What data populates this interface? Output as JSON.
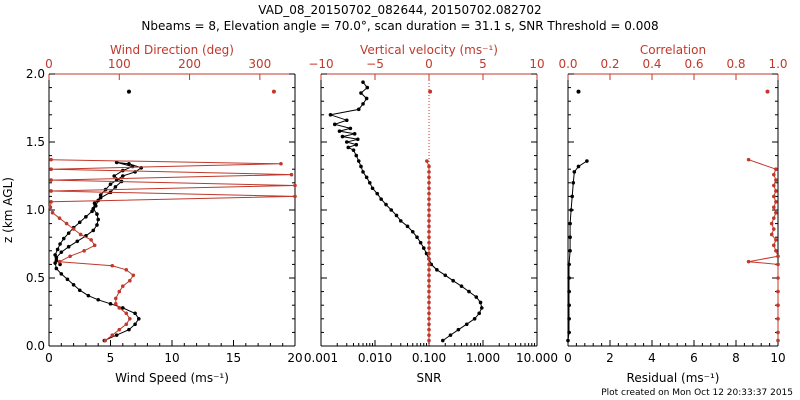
{
  "title_line1": "VAD_08_20150702_082644, 20150702.082702",
  "title_line2": "Nbeams = 8, Elevation angle = 70.0°, scan duration = 31.1 s, SNR Threshold = 0.008",
  "footer": "Plot created on Mon Oct 12 20:33:37 2015",
  "colors": {
    "black": "#000000",
    "red": "#c0392b"
  },
  "chart_data": [
    {
      "type": "line",
      "ylabel": "z (km AGL)",
      "ylim": [
        0,
        2
      ],
      "yticks": [
        "0.0",
        "0.5",
        "1.0",
        "1.5",
        "2.0"
      ],
      "xlabel": "Wind Speed (ms⁻¹)",
      "xlim": [
        0,
        20
      ],
      "xticks": [
        "0",
        "5",
        "10",
        "15",
        "20"
      ],
      "x2label": "Wind Direction (deg)",
      "x2lim": [
        0,
        350
      ],
      "x2ticks": [
        "0",
        "100",
        "200",
        "300"
      ],
      "x2tickvals": [
        0,
        100,
        200,
        300
      ],
      "series": [
        {
          "color": "#000000",
          "axis": "bottom",
          "points": [
            [
              4.5,
              0.04
            ],
            [
              5.5,
              0.08
            ],
            [
              6.5,
              0.12
            ],
            [
              7.0,
              0.16
            ],
            [
              7.3,
              0.2
            ],
            [
              7.0,
              0.24
            ],
            [
              6.0,
              0.28
            ],
            [
              5.0,
              0.31
            ],
            [
              4.0,
              0.34
            ],
            [
              3.2,
              0.37
            ],
            [
              2.5,
              0.41
            ],
            [
              2.0,
              0.45
            ],
            [
              1.5,
              0.49
            ],
            [
              1.0,
              0.53
            ],
            [
              0.6,
              0.57
            ],
            [
              0.5,
              0.61
            ],
            [
              0.6,
              0.65
            ],
            [
              1.0,
              0.69
            ],
            [
              1.6,
              0.73
            ],
            [
              2.3,
              0.77
            ],
            [
              3.0,
              0.81
            ],
            [
              3.6,
              0.85
            ],
            [
              3.9,
              0.89
            ],
            [
              4.0,
              0.93
            ],
            [
              3.9,
              0.97
            ],
            [
              3.6,
              1.01
            ],
            [
              3.7,
              1.05
            ],
            [
              4.2,
              1.09
            ],
            [
              5.0,
              1.13
            ],
            [
              5.4,
              1.17
            ],
            [
              5.9,
              1.21
            ],
            [
              5.3,
              1.25
            ],
            [
              6.0,
              1.29
            ],
            [
              6.8,
              1.32
            ],
            [
              5.5,
              1.35
            ],
            [
              6.5,
              1.34
            ],
            [
              7.5,
              1.31
            ],
            [
              7.0,
              1.28
            ],
            [
              6.0,
              1.25
            ],
            [
              5.5,
              1.22
            ],
            [
              5.0,
              1.19
            ],
            [
              4.6,
              1.15
            ],
            [
              4.2,
              1.11
            ],
            [
              4.0,
              1.07
            ],
            [
              3.8,
              1.03
            ],
            [
              3.5,
              0.99
            ],
            [
              3.0,
              0.95
            ],
            [
              2.5,
              0.91
            ],
            [
              2.0,
              0.87
            ],
            [
              1.6,
              0.83
            ],
            [
              1.2,
              0.79
            ],
            [
              0.9,
              0.75
            ],
            [
              0.7,
              0.71
            ],
            [
              0.5,
              0.67
            ],
            [
              0.6,
              0.63
            ],
            [
              0.9,
              0.6
            ]
          ],
          "isolated": [
            [
              6.5,
              1.87
            ]
          ]
        },
        {
          "color": "#c0392b",
          "axis": "top",
          "points": [
            [
              80,
              0.04
            ],
            [
              90,
              0.08
            ],
            [
              100,
              0.12
            ],
            [
              110,
              0.16
            ],
            [
              115,
              0.2
            ],
            [
              110,
              0.24
            ],
            [
              100,
              0.28
            ],
            [
              95,
              0.31
            ],
            [
              95,
              0.35
            ],
            [
              100,
              0.4
            ],
            [
              105,
              0.44
            ],
            [
              115,
              0.48
            ],
            [
              120,
              0.52
            ],
            [
              110,
              0.56
            ],
            [
              90,
              0.59
            ],
            [
              15,
              0.62
            ],
            [
              30,
              0.66
            ],
            [
              50,
              0.7
            ],
            [
              65,
              0.74
            ],
            [
              60,
              0.78
            ],
            [
              45,
              0.82
            ],
            [
              35,
              0.86
            ],
            [
              25,
              0.9
            ],
            [
              15,
              0.94
            ],
            [
              5,
              0.98
            ],
            [
              2,
              1.02
            ],
            [
              3,
              1.06
            ],
            [
              350,
              1.1
            ],
            [
              3,
              1.14
            ],
            [
              350,
              1.18
            ],
            [
              3,
              1.22
            ],
            [
              345,
              1.26
            ],
            [
              3,
              1.3
            ],
            [
              330,
              1.34
            ],
            [
              3,
              1.37
            ]
          ],
          "isolated": [
            [
              320,
              1.87
            ]
          ]
        }
      ]
    },
    {
      "type": "scatter",
      "ylim": [
        0,
        2
      ],
      "xlabel": "SNR",
      "xscale": "log",
      "xlim": [
        0.001,
        10
      ],
      "xticks": [
        "0.001",
        "0.010",
        "0.100",
        "1.000",
        "10.000"
      ],
      "x2label": "Vertical velocity (ms⁻¹)",
      "x2lim": [
        -10,
        10
      ],
      "x2ticks": [
        "−10",
        "−5",
        "0",
        "5",
        "10"
      ],
      "x2tickvals": [
        -10,
        -5,
        0,
        5,
        10
      ],
      "zero_line": 0,
      "series": [
        {
          "color": "#000000",
          "axis": "bottom",
          "points": [
            [
              0.18,
              0.04
            ],
            [
              0.25,
              0.08
            ],
            [
              0.35,
              0.12
            ],
            [
              0.5,
              0.16
            ],
            [
              0.7,
              0.2
            ],
            [
              0.85,
              0.24
            ],
            [
              0.95,
              0.28
            ],
            [
              0.9,
              0.32
            ],
            [
              0.75,
              0.36
            ],
            [
              0.55,
              0.4
            ],
            [
              0.4,
              0.44
            ],
            [
              0.28,
              0.48
            ],
            [
              0.2,
              0.52
            ],
            [
              0.14,
              0.56
            ],
            [
              0.11,
              0.6
            ],
            [
              0.1,
              0.64
            ],
            [
              0.09,
              0.68
            ],
            [
              0.08,
              0.72
            ],
            [
              0.07,
              0.76
            ],
            [
              0.06,
              0.8
            ],
            [
              0.05,
              0.84
            ],
            [
              0.04,
              0.88
            ],
            [
              0.03,
              0.92
            ],
            [
              0.025,
              0.96
            ],
            [
              0.02,
              1.0
            ],
            [
              0.016,
              1.04
            ],
            [
              0.013,
              1.08
            ],
            [
              0.011,
              1.12
            ],
            [
              0.009,
              1.16
            ],
            [
              0.008,
              1.2
            ],
            [
              0.007,
              1.24
            ],
            [
              0.006,
              1.28
            ],
            [
              0.0055,
              1.32
            ],
            [
              0.005,
              1.36
            ],
            [
              0.0045,
              1.4
            ],
            [
              0.004,
              1.44
            ],
            [
              0.0032,
              1.46
            ],
            [
              0.0045,
              1.48
            ],
            [
              0.003,
              1.5
            ],
            [
              0.0048,
              1.52
            ],
            [
              0.0025,
              1.54
            ],
            [
              0.0042,
              1.56
            ],
            [
              0.0022,
              1.58
            ],
            [
              0.0035,
              1.6
            ],
            [
              0.0018,
              1.63
            ],
            [
              0.003,
              1.66
            ],
            [
              0.0015,
              1.7
            ],
            [
              0.005,
              1.74
            ],
            [
              0.006,
              1.78
            ],
            [
              0.007,
              1.82
            ],
            [
              0.0055,
              1.86
            ],
            [
              0.0072,
              1.9
            ],
            [
              0.006,
              1.94
            ]
          ],
          "isolated": []
        },
        {
          "color": "#c0392b",
          "axis": "top",
          "points": [
            [
              0.0,
              0.04
            ],
            [
              0.0,
              0.08
            ],
            [
              0.0,
              0.12
            ],
            [
              0.0,
              0.16
            ],
            [
              0.0,
              0.2
            ],
            [
              0.0,
              0.24
            ],
            [
              0.0,
              0.28
            ],
            [
              0.0,
              0.32
            ],
            [
              0.0,
              0.36
            ],
            [
              0.0,
              0.4
            ],
            [
              0.0,
              0.44
            ],
            [
              0.0,
              0.48
            ],
            [
              0.0,
              0.52
            ],
            [
              0.0,
              0.56
            ],
            [
              0.0,
              0.6
            ],
            [
              0.0,
              0.64
            ],
            [
              0.0,
              0.68
            ],
            [
              0.0,
              0.72
            ],
            [
              0.0,
              0.76
            ],
            [
              0.0,
              0.8
            ],
            [
              0.0,
              0.84
            ],
            [
              0.0,
              0.88
            ],
            [
              0.0,
              0.92
            ],
            [
              0.0,
              0.96
            ],
            [
              0.0,
              1.0
            ],
            [
              0.0,
              1.04
            ],
            [
              0.0,
              1.08
            ],
            [
              0.0,
              1.12
            ],
            [
              0.0,
              1.16
            ],
            [
              0.0,
              1.2
            ],
            [
              0.0,
              1.24
            ],
            [
              0.0,
              1.28
            ],
            [
              0.0,
              1.32
            ],
            [
              -0.2,
              1.36
            ]
          ],
          "isolated": [
            [
              0.1,
              1.87
            ]
          ]
        }
      ]
    },
    {
      "type": "line",
      "ylim": [
        0,
        2
      ],
      "xlabel": "Residual (ms⁻¹)",
      "xlim": [
        0,
        10
      ],
      "xticks": [
        "0",
        "2",
        "4",
        "6",
        "8",
        "10"
      ],
      "x2label": "Correlation",
      "x2lim": [
        0,
        1
      ],
      "x2ticks": [
        "0.0",
        "0.2",
        "0.4",
        "0.6",
        "0.8",
        "1.0"
      ],
      "x2tickvals": [
        0,
        0.2,
        0.4,
        0.6,
        0.8,
        1.0
      ],
      "series": [
        {
          "color": "#000000",
          "axis": "bottom",
          "points": [
            [
              0.0,
              0.04
            ],
            [
              0.05,
              0.1
            ],
            [
              0.05,
              0.2
            ],
            [
              0.05,
              0.3
            ],
            [
              0.05,
              0.4
            ],
            [
              0.05,
              0.5
            ],
            [
              0.05,
              0.6
            ],
            [
              0.1,
              0.7
            ],
            [
              0.1,
              0.8
            ],
            [
              0.1,
              0.9
            ],
            [
              0.15,
              1.0
            ],
            [
              0.2,
              1.1
            ],
            [
              0.25,
              1.2
            ],
            [
              0.3,
              1.28
            ],
            [
              0.5,
              1.32
            ],
            [
              0.9,
              1.36
            ]
          ],
          "isolated": [
            [
              0.5,
              1.87
            ]
          ]
        },
        {
          "color": "#c0392b",
          "axis": "top",
          "points": [
            [
              1.0,
              0.04
            ],
            [
              1.0,
              0.1
            ],
            [
              1.0,
              0.2
            ],
            [
              1.0,
              0.3
            ],
            [
              1.0,
              0.4
            ],
            [
              1.0,
              0.5
            ],
            [
              1.0,
              0.6
            ],
            [
              0.86,
              0.62
            ],
            [
              1.0,
              0.66
            ],
            [
              0.99,
              0.7
            ],
            [
              0.98,
              0.74
            ],
            [
              0.99,
              0.78
            ],
            [
              0.97,
              0.82
            ],
            [
              0.98,
              0.86
            ],
            [
              0.97,
              0.9
            ],
            [
              0.98,
              0.94
            ],
            [
              0.99,
              0.98
            ],
            [
              0.98,
              1.02
            ],
            [
              0.99,
              1.06
            ],
            [
              0.98,
              1.1
            ],
            [
              0.99,
              1.14
            ],
            [
              0.98,
              1.18
            ],
            [
              0.99,
              1.22
            ],
            [
              0.98,
              1.26
            ],
            [
              0.99,
              1.3
            ],
            [
              0.86,
              1.37
            ]
          ],
          "isolated": [
            [
              0.95,
              1.87
            ]
          ]
        }
      ]
    }
  ]
}
